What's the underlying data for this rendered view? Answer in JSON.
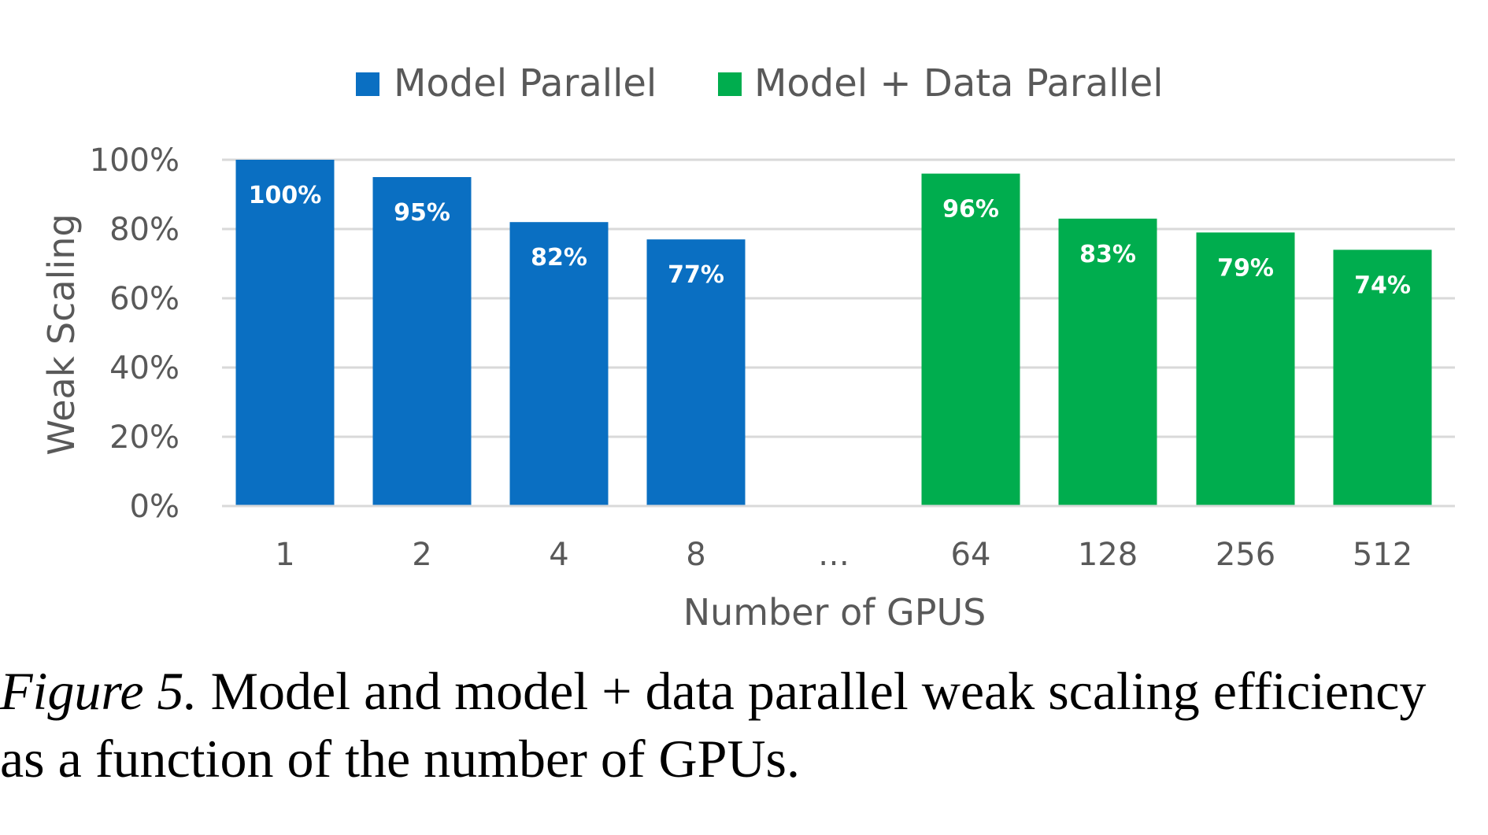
{
  "chart_data": {
    "type": "bar",
    "categories": [
      "1",
      "2",
      "4",
      "8",
      "…",
      "64",
      "128",
      "256",
      "512"
    ],
    "series": [
      {
        "name": "Model Parallel",
        "color": "#0a6fc2",
        "values": [
          1.0,
          0.95,
          0.82,
          0.77,
          null,
          null,
          null,
          null,
          null
        ]
      },
      {
        "name": "Model + Data Parallel",
        "color": "#00ad4e",
        "values": [
          null,
          null,
          null,
          null,
          null,
          0.96,
          0.83,
          0.79,
          0.74
        ]
      }
    ],
    "data_labels": [
      "100%",
      "95%",
      "82%",
      "77%",
      "",
      "96%",
      "83%",
      "79%",
      "74%"
    ],
    "xlabel": "Number of GPUS",
    "ylabel": "Weak Scaling",
    "ylim": [
      0,
      1.0
    ],
    "yticks": [
      {
        "value": 0.0,
        "label": "0%"
      },
      {
        "value": 0.2,
        "label": "20%"
      },
      {
        "value": 0.4,
        "label": "40%"
      },
      {
        "value": 0.6,
        "label": "60%"
      },
      {
        "value": 0.8,
        "label": "80%"
      },
      {
        "value": 1.0,
        "label": "100%"
      }
    ],
    "grid": true,
    "legend_position": "top-center"
  },
  "caption": {
    "label": "Figure 5.",
    "line1_rest": " Model and model + data parallel weak scaling efficiency",
    "line2": "as a function of the number of GPUs."
  }
}
